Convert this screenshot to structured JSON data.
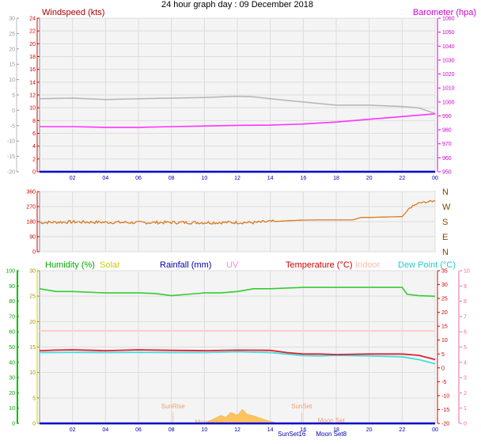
{
  "page_title": "24 hour graph day : 09 December 2018",
  "x_hour_labels": [
    "02",
    "04",
    "06",
    "08",
    "10",
    "12",
    "14",
    "16",
    "18",
    "20",
    "22",
    "00"
  ],
  "x_hours": [
    2,
    4,
    6,
    8,
    10,
    12,
    14,
    16,
    18,
    20,
    22,
    24
  ],
  "colors": {
    "windspeed": "#b4b4b4",
    "barometer": "#ff33ff",
    "wind_dir": "#d97a20",
    "humidity": "#33cc33",
    "solar": "#ffbb44",
    "rainfall": "#0000cc",
    "uv": "#ee88ee",
    "temperature": "#dd2233",
    "indoor": "#ffcccc",
    "dew_point": "#44dddd",
    "humidity_axis": "#00bb00",
    "solar_axis": "#cccc00",
    "uv_axis": "#ee66aa",
    "temp_axis": "#cc0000",
    "grid": "#dddddd",
    "plot_bg": "#f4f4f4"
  },
  "chart_data": [
    {
      "type": "line",
      "id": "wind_baro",
      "legend": [
        {
          "label": "Windspeed (kts)",
          "color": "#aa0000",
          "position": "top-left"
        },
        {
          "label": "Barometer (hpa)",
          "color": "#cc00cc",
          "position": "top-right"
        }
      ],
      "axes": {
        "outer_left": {
          "ticks": [
            30,
            25,
            20,
            15,
            10,
            5,
            0,
            -5,
            -10,
            -15,
            -20
          ],
          "range": [
            -20,
            30
          ]
        },
        "left": {
          "ticks": [
            24,
            22,
            20,
            18,
            16,
            14,
            12,
            10,
            8,
            6,
            4,
            2,
            0
          ],
          "range": [
            0,
            24
          ],
          "label": "Windspeed (kts)"
        },
        "right": {
          "ticks": [
            1060,
            1050,
            1040,
            1030,
            1020,
            1010,
            1000,
            990,
            980,
            970,
            960,
            950
          ],
          "range": [
            950,
            1060
          ],
          "label": "Barometer (hpa)"
        },
        "x": {
          "range": [
            0,
            24
          ]
        }
      },
      "grid": true,
      "series": [
        {
          "name": "Windspeed (kts)",
          "axis": "left",
          "x": [
            0,
            2,
            4,
            6,
            8,
            10,
            12,
            13,
            14,
            16,
            18,
            20,
            22,
            23,
            24
          ],
          "y": [
            11.4,
            11.5,
            11.3,
            11.4,
            11.5,
            11.6,
            11.8,
            11.7,
            11.4,
            10.9,
            10.4,
            10.4,
            10.2,
            10.0,
            9.1
          ]
        },
        {
          "name": "Barometer (hpa)",
          "axis": "right",
          "x": [
            0,
            2,
            4,
            6,
            8,
            10,
            12,
            14,
            16,
            18,
            20,
            22,
            24
          ],
          "y": [
            982.3,
            982.3,
            981.8,
            981.8,
            982.3,
            982.8,
            983.2,
            983.4,
            984.2,
            985.6,
            987.6,
            989.5,
            991.5
          ]
        },
        {
          "name": "Baseline",
          "axis": "left",
          "x": [
            0,
            24
          ],
          "y": [
            0,
            0
          ],
          "color": "#0000cc"
        }
      ]
    },
    {
      "type": "line",
      "id": "wind_direction",
      "axes": {
        "left": {
          "ticks": [
            360,
            270,
            180,
            90,
            0
          ],
          "range": [
            0,
            360
          ]
        },
        "right": {
          "ticks": [
            "N",
            "W",
            "S",
            "E",
            "N"
          ]
        },
        "x": {
          "range": [
            0,
            24
          ]
        }
      },
      "grid": true,
      "series": [
        {
          "name": "Wind direction",
          "x": [
            0,
            2,
            4,
            6,
            8,
            10,
            12,
            13,
            14,
            14.5,
            15,
            16,
            17,
            18,
            19,
            19.5,
            20,
            22,
            22.5,
            23,
            24
          ],
          "y": [
            175,
            178,
            176,
            174,
            175,
            174,
            175,
            174,
            180,
            182,
            185,
            189,
            190,
            190,
            190,
            205,
            205,
            210,
            265,
            290,
            305
          ]
        }
      ]
    },
    {
      "type": "line",
      "id": "temp_humidity",
      "legend": [
        {
          "label": "Humidity  (%)",
          "color": "#00aa00"
        },
        {
          "label": "Solar",
          "color": "#cccc00"
        },
        {
          "label": "Rainfall (mm)",
          "color": "#0000aa"
        },
        {
          "label": "UV",
          "color": "#ee88ee"
        },
        {
          "label": "Temperature (°C)",
          "color": "#cc0000"
        },
        {
          "label": "Indoor",
          "color": "#ffbbaa"
        },
        {
          "label": "Dew Point (°C)",
          "color": "#22cccc"
        }
      ],
      "axes": {
        "humidity": {
          "ticks": [
            100,
            90,
            80,
            70,
            60,
            50,
            40,
            30,
            20,
            10,
            0
          ],
          "range": [
            0,
            100
          ]
        },
        "solar": {
          "ticks": [
            30,
            25,
            20,
            15,
            10,
            5,
            0
          ],
          "range": [
            0,
            30
          ]
        },
        "temperature": {
          "ticks": [
            35,
            30,
            25,
            20,
            15,
            10,
            5,
            0,
            -5,
            -10,
            -15,
            -20
          ],
          "range": [
            -20,
            35
          ]
        },
        "uv": {
          "ticks": [
            10,
            9,
            8,
            7,
            6,
            5,
            4,
            3,
            2,
            1,
            0
          ],
          "range": [
            0,
            10
          ]
        },
        "x": {
          "range": [
            0,
            24
          ]
        }
      },
      "grid": true,
      "annotations": [
        {
          "text": "SunRise",
          "x": 8.1
        },
        {
          "text": "SunSet",
          "x": 15.9
        },
        {
          "text": "Moon Set",
          "x": 17.7
        },
        {
          "text": "MoonRise",
          "x": 10.3
        },
        {
          "text": "SunSet16",
          "x": 15.3
        },
        {
          "text": "Moon Set8",
          "x": 17.7
        }
      ],
      "series": [
        {
          "name": "Humidity",
          "axis": "temperature",
          "x": [
            0,
            1,
            2,
            4,
            6,
            7,
            8,
            10,
            11,
            12,
            13,
            14,
            16,
            17,
            18,
            19,
            20,
            22,
            22.3,
            23,
            24
          ],
          "y": [
            28.5,
            27.5,
            27.5,
            27.0,
            27.0,
            26.8,
            26.0,
            27.0,
            27.0,
            27.5,
            28.5,
            28.5,
            29.0,
            29.0,
            29.0,
            29.0,
            29.0,
            29.0,
            26.5,
            26.0,
            25.8
          ]
        },
        {
          "name": "Indoor",
          "axis": "temperature",
          "x": [
            0,
            24
          ],
          "y": [
            13.3,
            13.3
          ]
        },
        {
          "name": "Temperature",
          "axis": "temperature",
          "x": [
            0,
            1,
            2,
            4,
            6,
            8,
            10,
            12,
            14,
            15,
            16,
            17,
            18,
            20,
            22,
            23,
            24
          ],
          "y": [
            6.2,
            6.4,
            6.5,
            6.2,
            6.5,
            6.3,
            6.2,
            6.4,
            6.3,
            5.5,
            5.0,
            5.0,
            4.8,
            5.0,
            5.0,
            4.5,
            3.0
          ]
        },
        {
          "name": "Dew Point",
          "axis": "temperature",
          "x": [
            0,
            2,
            4,
            6,
            8,
            10,
            12,
            14,
            15,
            16,
            17,
            18,
            20,
            22,
            23,
            24
          ],
          "y": [
            5.5,
            5.6,
            5.5,
            5.6,
            5.5,
            5.5,
            5.8,
            5.5,
            5.0,
            4.4,
            4.3,
            4.5,
            4.3,
            4.0,
            3.0,
            1.5
          ]
        },
        {
          "name": "Solar",
          "axis": "solar",
          "x": [
            10,
            10.5,
            11,
            11.3,
            11.6,
            12,
            12.3,
            12.6,
            13,
            13.5,
            14,
            14.5
          ],
          "y": [
            0,
            0.8,
            1.6,
            1.2,
            2.2,
            1.6,
            2.8,
            1.8,
            1.5,
            0.9,
            0.4,
            0
          ]
        },
        {
          "name": "Rainfall",
          "axis": "humidity",
          "x": [
            0,
            24
          ],
          "y": [
            0,
            0
          ]
        }
      ]
    }
  ]
}
